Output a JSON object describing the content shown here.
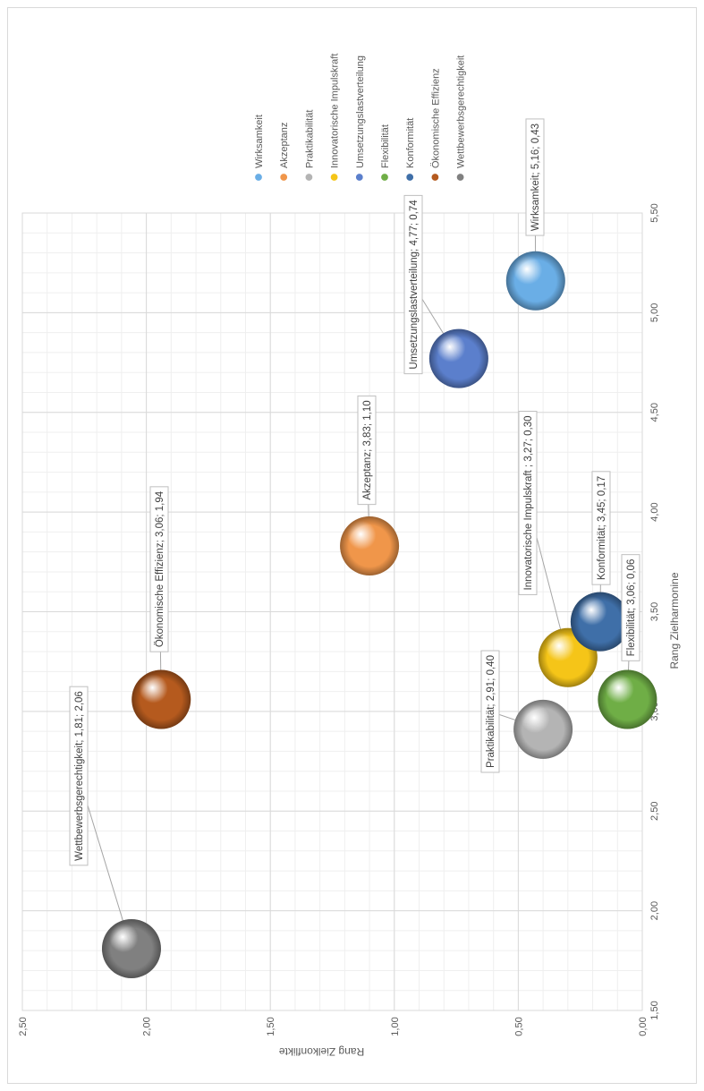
{
  "chart_data": {
    "type": "bubble",
    "xlabel": "Rang Zielharmonine",
    "ylabel": "Rang Zielkonflikte",
    "xlim": [
      1.5,
      5.5
    ],
    "ylim": [
      0.0,
      2.5
    ],
    "x_ticks": [
      "1,50",
      "2,00",
      "2,50",
      "3,00",
      "3,50",
      "4,00",
      "4,50",
      "5,00",
      "5,50"
    ],
    "y_ticks": [
      "0,00",
      "0,50",
      "1,00",
      "1,50",
      "2,00",
      "2,50"
    ],
    "grid": true,
    "legend_position": "top",
    "series": [
      {
        "name": "Wirksamkeit",
        "x": 5.16,
        "y": 0.43,
        "label": "Wirksamkeit; 5,16; 0,43",
        "color": "#6aaee6"
      },
      {
        "name": "Akzeptanz",
        "x": 3.83,
        "y": 1.1,
        "label": "Akzeptanz; 3,83; 1,10",
        "color": "#f0964a"
      },
      {
        "name": "Praktikabilität",
        "x": 2.91,
        "y": 0.4,
        "label": "Praktikabilität; 2,91; 0,40",
        "color": "#b4b4b4"
      },
      {
        "name": "Innovatorische Impulskraft",
        "x": 3.27,
        "y": 0.3,
        "label": "Innovatorische Impulskraft ; 3,27; 0,30",
        "color": "#f5c518"
      },
      {
        "name": "Umsetzungslastverteilung",
        "x": 4.77,
        "y": 0.74,
        "label": "Umsetzungslastverteilung; 4,77; 0,74",
        "color": "#5b7fcc"
      },
      {
        "name": "Flexibilität",
        "x": 3.06,
        "y": 0.06,
        "label": "Flexibilität; 3,06; 0,06",
        "color": "#6fae46"
      },
      {
        "name": "Konformität",
        "x": 3.45,
        "y": 0.17,
        "label": "Konformität; 3,45; 0,17",
        "color": "#3f6fa8"
      },
      {
        "name": "Ökonomische Effizienz",
        "x": 3.06,
        "y": 1.94,
        "label": "Ökonomische Effizienz; 3,06; 1,94",
        "color": "#b55a1e"
      },
      {
        "name": "Wettbewerbsgerechtigkeit",
        "x": 1.81,
        "y": 2.06,
        "label": "Wettbewerbsgerechtigkeit; 1,81; 2,06",
        "color": "#808080"
      }
    ]
  }
}
